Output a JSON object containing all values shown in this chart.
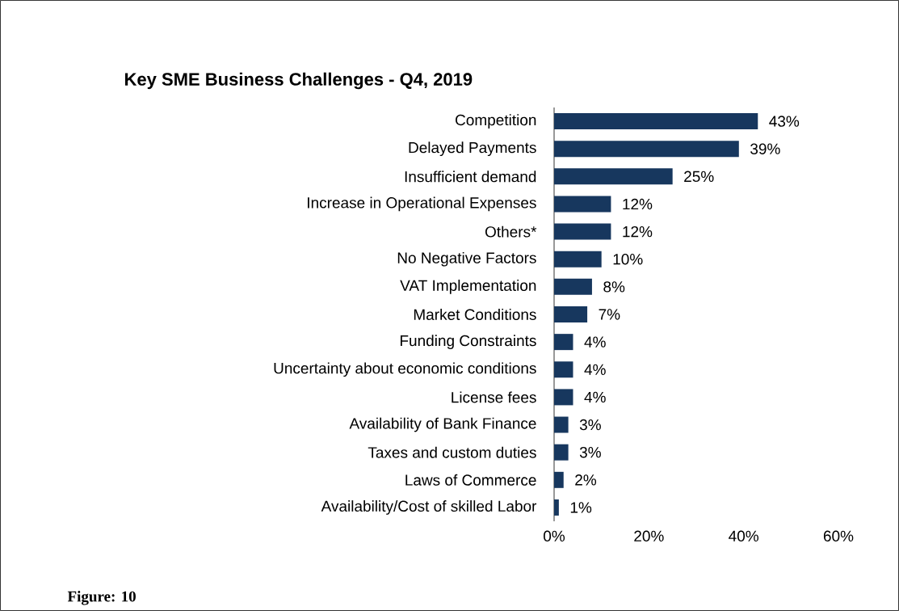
{
  "chart_data": {
    "type": "bar",
    "orientation": "horizontal",
    "title": "Key SME Business Challenges  - Q4, 2019",
    "categories": [
      "Competition",
      "Delayed Payments",
      "Insufficient demand",
      "Increase in Operational Expenses",
      "Others*",
      "No Negative Factors",
      "VAT Implementation",
      "Market Conditions",
      "Funding Constraints",
      "Uncertainty about economic conditions",
      "License fees",
      "Availability of Bank Finance",
      "Taxes and custom duties",
      "Laws of Commerce",
      "Availability/Cost of skilled Labor"
    ],
    "values": [
      43,
      39,
      25,
      12,
      12,
      10,
      8,
      7,
      4,
      4,
      4,
      3,
      3,
      2,
      1
    ],
    "value_labels": [
      "43%",
      "39%",
      "25%",
      "12%",
      "12%",
      "10%",
      "8%",
      "7%",
      "4%",
      "4%",
      "4%",
      "3%",
      "3%",
      "2%",
      "1%"
    ],
    "color": "#17375e",
    "xlim": [
      0,
      60
    ],
    "xticks": [
      {
        "value": 0,
        "label": "0%"
      },
      {
        "value": 20,
        "label": "20%"
      },
      {
        "value": 40,
        "label": "40%"
      },
      {
        "value": 60,
        "label": "60%"
      }
    ],
    "annotations": [
      "Figure: 10"
    ]
  }
}
